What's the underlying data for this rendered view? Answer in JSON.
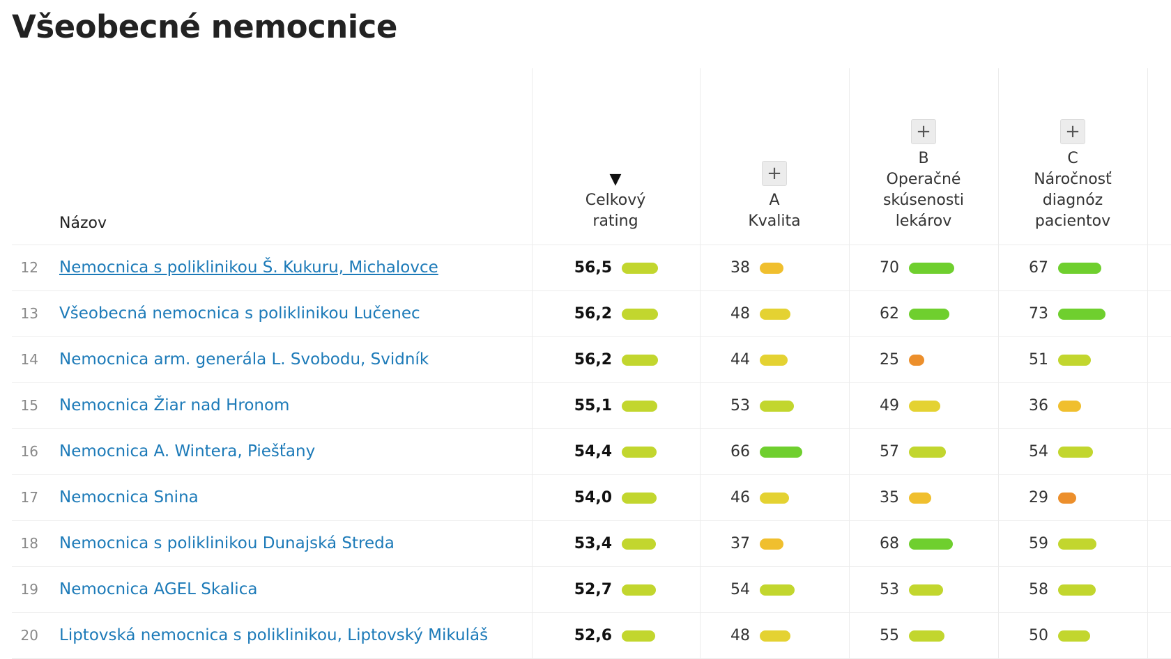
{
  "page": {
    "title": "Všeobecné nemocnice"
  },
  "table": {
    "header": {
      "name": "Názov",
      "overall": {
        "line1": "Celkový",
        "line2": "rating",
        "sort_icon": "▼"
      },
      "a": {
        "letter": "A",
        "line1": "Kvalita",
        "plus": "+"
      },
      "b": {
        "letter": "B",
        "line1": "Operačné",
        "line2": "skúsenosti",
        "line3": "lekárov",
        "plus": "+"
      },
      "c": {
        "letter": "C",
        "line1": "Náročnosť",
        "line2": "diagnóz",
        "line3": "pacientov",
        "plus": "+"
      }
    },
    "rows": [
      {
        "rank": "12",
        "name": "Nemocnica s poliklinikou Š. Kukuru, Michalovce",
        "overall": "56,5",
        "a": "38",
        "b": "70",
        "c": "67",
        "overall_v": 56.5,
        "a_v": 38,
        "b_v": 70,
        "c_v": 67
      },
      {
        "rank": "13",
        "name": "Všeobecná nemocnica s poliklinikou Lučenec",
        "overall": "56,2",
        "a": "48",
        "b": "62",
        "c": "73",
        "overall_v": 56.2,
        "a_v": 48,
        "b_v": 62,
        "c_v": 73
      },
      {
        "rank": "14",
        "name": "Nemocnica arm. generála L. Svobodu, Svidník",
        "overall": "56,2",
        "a": "44",
        "b": "25",
        "c": "51",
        "overall_v": 56.2,
        "a_v": 44,
        "b_v": 25,
        "c_v": 51
      },
      {
        "rank": "15",
        "name": "Nemocnica Žiar nad Hronom",
        "overall": "55,1",
        "a": "53",
        "b": "49",
        "c": "36",
        "overall_v": 55.1,
        "a_v": 53,
        "b_v": 49,
        "c_v": 36
      },
      {
        "rank": "16",
        "name": "Nemocnica A. Wintera, Piešťany",
        "overall": "54,4",
        "a": "66",
        "b": "57",
        "c": "54",
        "overall_v": 54.4,
        "a_v": 66,
        "b_v": 57,
        "c_v": 54
      },
      {
        "rank": "17",
        "name": "Nemocnica Snina",
        "overall": "54,0",
        "a": "46",
        "b": "35",
        "c": "29",
        "overall_v": 54.0,
        "a_v": 46,
        "b_v": 35,
        "c_v": 29
      },
      {
        "rank": "18",
        "name": "Nemocnica s poliklinikou Dunajská Streda",
        "overall": "53,4",
        "a": "37",
        "b": "68",
        "c": "59",
        "overall_v": 53.4,
        "a_v": 37,
        "b_v": 68,
        "c_v": 59
      },
      {
        "rank": "19",
        "name": "Nemocnica AGEL Skalica",
        "overall": "52,7",
        "a": "54",
        "b": "53",
        "c": "58",
        "overall_v": 52.7,
        "a_v": 54,
        "b_v": 53,
        "c_v": 58
      },
      {
        "rank": "20",
        "name": "Liptovská nemocnica s poliklinikou, Liptovský Mikuláš",
        "overall": "52,6",
        "a": "48",
        "b": "55",
        "c": "50",
        "overall_v": 52.6,
        "a_v": 48,
        "b_v": 55,
        "c_v": 50
      }
    ]
  },
  "colors": {
    "link": "#1c7ab8",
    "green": "#6fcf2e",
    "yellow_green": "#c2d62e",
    "yellow": "#e4d232",
    "amber": "#f0bf2e",
    "orange": "#ec8f2c"
  }
}
